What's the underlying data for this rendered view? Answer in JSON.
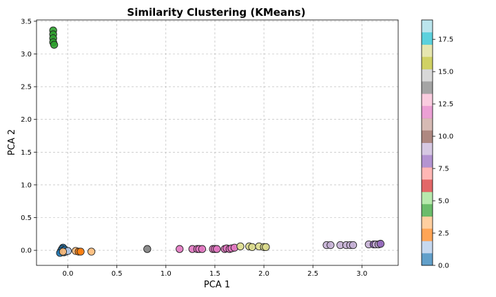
{
  "chart_data": {
    "type": "scatter",
    "title": "Similarity Clustering (KMeans)",
    "xlabel": "PCA 1",
    "ylabel": "PCA 2",
    "xlim": [
      -0.32,
      3.37
    ],
    "ylim": [
      -0.23,
      3.52
    ],
    "xticks": [
      "0.0",
      "0.5",
      "1.0",
      "1.5",
      "2.0",
      "2.5",
      "3.0"
    ],
    "yticks": [
      "0.0",
      "0.5",
      "1.0",
      "1.5",
      "2.0",
      "2.5",
      "3.0",
      "3.5"
    ],
    "xtick_values": [
      0.0,
      0.5,
      1.0,
      1.5,
      2.0,
      2.5,
      3.0
    ],
    "ytick_values": [
      0.0,
      0.5,
      1.0,
      1.5,
      2.0,
      2.5,
      3.0,
      3.5
    ],
    "grid": true,
    "colormap": "tab20",
    "colorbar": {
      "range": [
        0,
        19
      ],
      "ticks": [
        "0.0",
        "2.5",
        "5.0",
        "7.5",
        "10.0",
        "12.5",
        "15.0",
        "17.5"
      ],
      "tick_values": [
        0.0,
        2.5,
        5.0,
        7.5,
        10.0,
        12.5,
        15.0,
        17.5
      ],
      "colors": [
        "#1f77b4",
        "#aec7e8",
        "#ff7f0e",
        "#ffbb78",
        "#2ca02c",
        "#98df8a",
        "#d62728",
        "#ff9896",
        "#9467bd",
        "#c5b0d5",
        "#8c564b",
        "#c49c94",
        "#e377c2",
        "#f7b6d2",
        "#7f7f7f",
        "#c7c7c7",
        "#bcbd22",
        "#dbdb8d",
        "#17becf",
        "#9edae5"
      ]
    },
    "points": [
      {
        "x": -0.15,
        "y": 3.36,
        "cluster": 4
      },
      {
        "x": -0.15,
        "y": 3.3,
        "cluster": 4
      },
      {
        "x": -0.15,
        "y": 3.24,
        "cluster": 4
      },
      {
        "x": -0.15,
        "y": 3.18,
        "cluster": 4
      },
      {
        "x": -0.14,
        "y": 3.14,
        "cluster": 4
      },
      {
        "x": -0.05,
        "y": 0.04,
        "cluster": 0
      },
      {
        "x": -0.06,
        "y": 0.02,
        "cluster": 0
      },
      {
        "x": -0.07,
        "y": -0.01,
        "cluster": 0
      },
      {
        "x": -0.08,
        "y": -0.04,
        "cluster": 0
      },
      {
        "x": -0.04,
        "y": -0.03,
        "cluster": 0
      },
      {
        "x": -0.03,
        "y": 0.01,
        "cluster": 0
      },
      {
        "x": -0.02,
        "y": -0.02,
        "cluster": 1
      },
      {
        "x": 0.0,
        "y": -0.01,
        "cluster": 1
      },
      {
        "x": -0.05,
        "y": -0.02,
        "cluster": 3
      },
      {
        "x": 0.08,
        "y": -0.01,
        "cluster": 3
      },
      {
        "x": 0.11,
        "y": -0.02,
        "cluster": 2
      },
      {
        "x": 0.13,
        "y": -0.02,
        "cluster": 2
      },
      {
        "x": 0.24,
        "y": -0.02,
        "cluster": 3
      },
      {
        "x": 0.81,
        "y": 0.02,
        "cluster": 14
      },
      {
        "x": 1.14,
        "y": 0.02,
        "cluster": 12
      },
      {
        "x": 1.27,
        "y": 0.02,
        "cluster": 12
      },
      {
        "x": 1.32,
        "y": 0.02,
        "cluster": 12
      },
      {
        "x": 1.34,
        "y": 0.02,
        "cluster": 12
      },
      {
        "x": 1.37,
        "y": 0.02,
        "cluster": 12
      },
      {
        "x": 1.48,
        "y": 0.02,
        "cluster": 12
      },
      {
        "x": 1.5,
        "y": 0.02,
        "cluster": 12
      },
      {
        "x": 1.52,
        "y": 0.02,
        "cluster": 12
      },
      {
        "x": 1.6,
        "y": 0.02,
        "cluster": 12
      },
      {
        "x": 1.62,
        "y": 0.03,
        "cluster": 12
      },
      {
        "x": 1.65,
        "y": 0.02,
        "cluster": 12
      },
      {
        "x": 1.67,
        "y": 0.03,
        "cluster": 12
      },
      {
        "x": 1.7,
        "y": 0.04,
        "cluster": 12
      },
      {
        "x": 1.76,
        "y": 0.06,
        "cluster": 17
      },
      {
        "x": 1.85,
        "y": 0.06,
        "cluster": 17
      },
      {
        "x": 1.88,
        "y": 0.05,
        "cluster": 17
      },
      {
        "x": 1.95,
        "y": 0.06,
        "cluster": 17
      },
      {
        "x": 2.0,
        "y": 0.05,
        "cluster": 17
      },
      {
        "x": 2.02,
        "y": 0.05,
        "cluster": 17
      },
      {
        "x": 2.64,
        "y": 0.08,
        "cluster": 9
      },
      {
        "x": 2.68,
        "y": 0.08,
        "cluster": 9
      },
      {
        "x": 2.78,
        "y": 0.08,
        "cluster": 9
      },
      {
        "x": 2.84,
        "y": 0.08,
        "cluster": 9
      },
      {
        "x": 2.88,
        "y": 0.08,
        "cluster": 9
      },
      {
        "x": 2.91,
        "y": 0.08,
        "cluster": 9
      },
      {
        "x": 3.07,
        "y": 0.09,
        "cluster": 9
      },
      {
        "x": 3.12,
        "y": 0.09,
        "cluster": 8
      },
      {
        "x": 3.14,
        "y": 0.09,
        "cluster": 9
      },
      {
        "x": 3.17,
        "y": 0.09,
        "cluster": 9
      },
      {
        "x": 3.19,
        "y": 0.1,
        "cluster": 8
      }
    ]
  }
}
